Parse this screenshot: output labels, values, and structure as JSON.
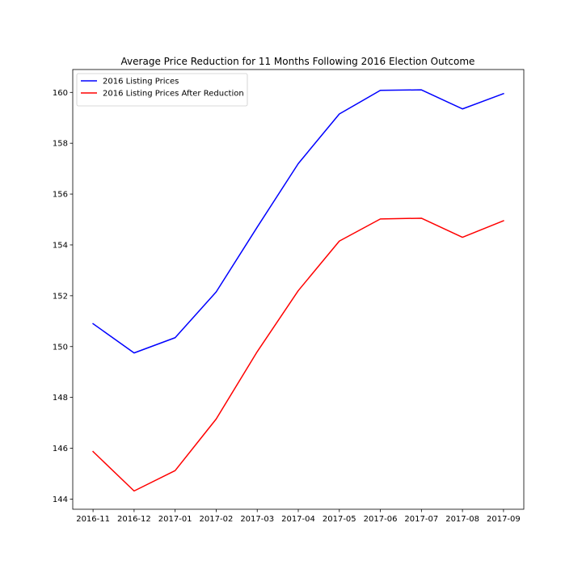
{
  "chart_data": {
    "type": "line",
    "title": "Average Price Reduction for 11 Months Following 2016 Election Outcome",
    "xlabel": "",
    "ylabel": "",
    "categories": [
      "2016-11",
      "2016-12",
      "2017-01",
      "2017-02",
      "2017-03",
      "2017-04",
      "2017-05",
      "2017-06",
      "2017-07",
      "2017-08",
      "2017-09"
    ],
    "yticks": [
      "144",
      "146",
      "148",
      "150",
      "152",
      "154",
      "156",
      "158",
      "160"
    ],
    "ylim": [
      143.6,
      160.9
    ],
    "grid": false,
    "legend_position": "top-left",
    "series": [
      {
        "name": "2016 Listing Prices",
        "color": "#0000ff",
        "values": [
          150.9,
          149.75,
          150.35,
          152.15,
          154.7,
          157.2,
          159.15,
          160.08,
          160.1,
          159.35,
          159.95
        ]
      },
      {
        "name": "2016 Listing Prices After Reduction",
        "color": "#ff0000",
        "values": [
          145.87,
          144.32,
          145.12,
          147.15,
          149.8,
          152.2,
          154.15,
          155.02,
          155.05,
          154.3,
          154.95
        ]
      }
    ]
  }
}
